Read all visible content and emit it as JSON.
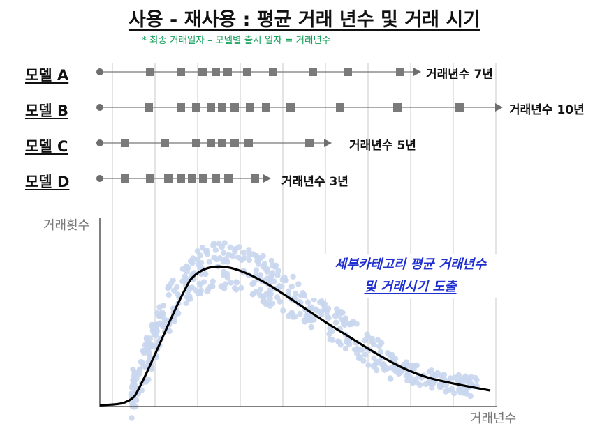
{
  "title": "사용 - 재사용 : 평균 거래 년수 및 거래 시기",
  "note": "* 최종 거래일자 – 모델별 출시 일자 = 거래년수",
  "models": [
    {
      "name": "모델 A",
      "label": "거래년수 7년"
    },
    {
      "name": "모델 B",
      "label": "거래년수 10년"
    },
    {
      "name": "모델 C",
      "label": "거래년수 5년"
    },
    {
      "name": "모델 D",
      "label": "거래년수 3년"
    }
  ],
  "chart": {
    "ylabel": "거래횟수",
    "xlabel": "거래년수",
    "callout_line1": "세부카테고리 평균 거래년수",
    "callout_line2": "및 거래시기 도출"
  },
  "colors": {
    "marker": "#7a7a7a",
    "scatter": "#c9d6ee",
    "curve": "#000000",
    "note": "#14a05a",
    "callout": "#1f2fd0"
  }
}
